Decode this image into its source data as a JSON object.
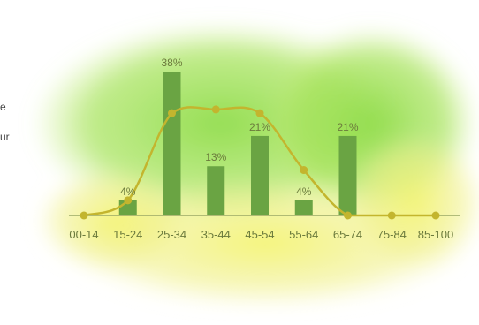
{
  "edge_text": [
    "e",
    "ur"
  ],
  "chart_data": {
    "type": "bar",
    "categories": [
      "00-14",
      "15-24",
      "25-34",
      "35-44",
      "45-54",
      "55-64",
      "65-74",
      "75-84",
      "85-100"
    ],
    "series": [
      {
        "values": [
          0,
          4,
          38,
          13,
          21,
          4,
          21,
          0,
          0
        ],
        "data_labels": [
          "",
          "4%",
          "38%",
          "13%",
          "21%",
          "4%",
          "21%",
          "",
          ""
        ]
      }
    ],
    "overlay_line": {
      "type": "line",
      "values": [
        0,
        4,
        27,
        28,
        27,
        12,
        0,
        0,
        0
      ]
    },
    "ylim": [
      0,
      40
    ],
    "title": "",
    "xlabel": "",
    "ylabel": "",
    "grid": false,
    "colors": {
      "bar": "#6aa443",
      "line": "#c3b52e",
      "axis": "#9aa866",
      "label": "#6b7a3c"
    }
  }
}
